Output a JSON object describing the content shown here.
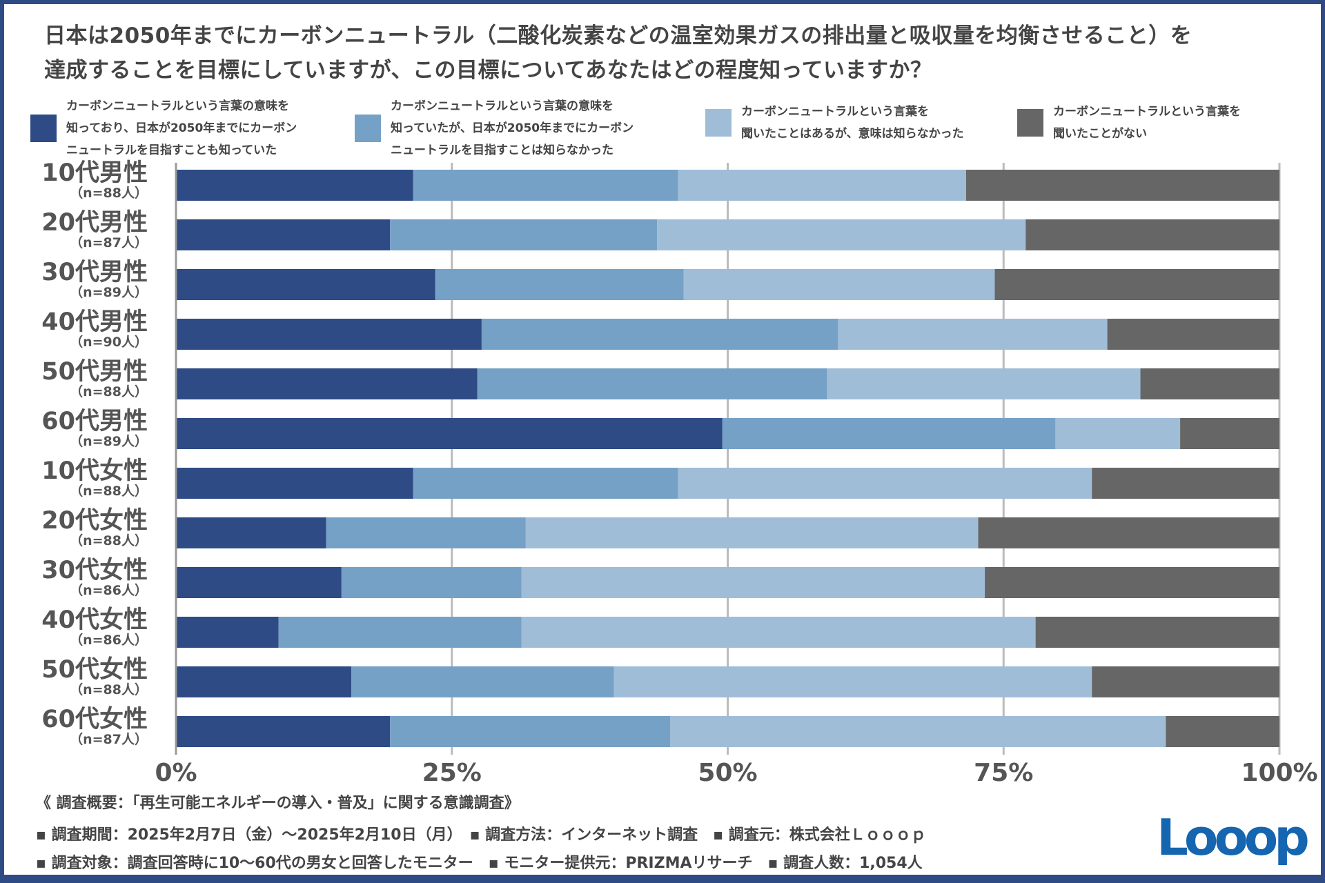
{
  "title": [
    "日本は2050年までにカーボンニュートラル（二酸化炭素などの温室効果ガスの排出量と吸収量を均衡させること）を",
    "達成することを目標にしていますが、この目標についてあなたはどの程度知っていますか？"
  ],
  "chart_data": {
    "type": "bar",
    "orientation": "horizontal-stacked-100",
    "legend_position": "top",
    "grid": true,
    "xlim": [
      0,
      100
    ],
    "xticks": [
      "0%",
      "25%",
      "50%",
      "75%",
      "100%"
    ],
    "colors": [
      "#2e4b85",
      "#76a1c6",
      "#a0bdd8",
      "#666666"
    ],
    "series": [
      {
        "name": "カーボンニュートラルという言葉の意味を\n知っており、日本が2050年までにカーボン\nニュートラルを目指すことも知っていた",
        "values": [
          21.5,
          19.4,
          23.5,
          27.7,
          27.3,
          49.5,
          21.5,
          13.6,
          15.0,
          9.3,
          15.9,
          19.4
        ]
      },
      {
        "name": "カーボンニュートラルという言葉の意味を\n知っていたが、日本が2050年までにカーボン\nニュートラルを目指すことは知らなかった",
        "values": [
          24.0,
          24.2,
          22.5,
          32.3,
          31.7,
          30.2,
          24.0,
          18.1,
          16.3,
          22.0,
          23.8,
          25.4
        ]
      },
      {
        "name": "カーボンニュートラルという言葉を\n聞いたことはあるが、意味は知らなかった",
        "values": [
          26.1,
          33.4,
          28.2,
          24.4,
          28.4,
          11.3,
          37.5,
          41.0,
          42.0,
          46.6,
          43.3,
          44.9
        ]
      },
      {
        "name": "カーボンニュートラルという言葉を\n聞いたことがない",
        "values": [
          28.4,
          23.0,
          25.8,
          15.6,
          12.6,
          9.0,
          17.0,
          27.3,
          26.7,
          22.1,
          17.0,
          10.3
        ]
      }
    ],
    "categories": [
      {
        "group": "10代男性",
        "n": "（n=88人）"
      },
      {
        "group": "20代男性",
        "n": "（n=87人）"
      },
      {
        "group": "30代男性",
        "n": "（n=89人）"
      },
      {
        "group": "40代男性",
        "n": "（n=90人）"
      },
      {
        "group": "50代男性",
        "n": "（n=88人）"
      },
      {
        "group": "60代男性",
        "n": "（n=89人）"
      },
      {
        "group": "10代女性",
        "n": "（n=88人）"
      },
      {
        "group": "20代女性",
        "n": "（n=88人）"
      },
      {
        "group": "30代女性",
        "n": "（n=86人）"
      },
      {
        "group": "40代女性",
        "n": "（n=86人）"
      },
      {
        "group": "50代女性",
        "n": "（n=88人）"
      },
      {
        "group": "60代女性",
        "n": "（n=87人）"
      }
    ]
  },
  "footer": [
    "《 調査概要：「再生可能エネルギーの導入・普及」に関する意識調査》",
    "▪ 調査期間：2025年2月7日（金）〜2025年2月10日（月）　▪ 調査方法：インターネット調査　▪ 調査元：株式会社Ｌｏｏｏｐ",
    "▪ 調査対象：調査回答時に10〜60代の男女と回答したモニター　▪ モニター提供元：PRIZMAリサーチ　▪ 調査人数：1,054人"
  ],
  "logo": "Looop"
}
